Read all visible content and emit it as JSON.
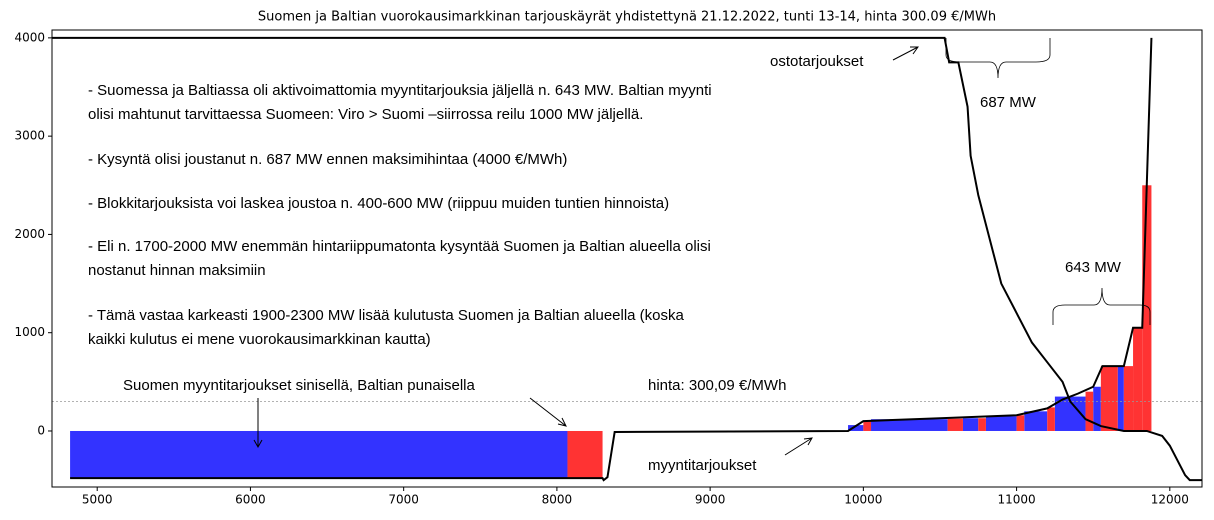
{
  "chart_data": {
    "type": "line",
    "title": "Suomen ja Baltian vuorokausimarkkinan tarjouskäyrät yhdistettynä 21.12.2022, tunti 13-14, hinta 300.09 €/MWh",
    "xlim": [
      4705,
      12210
    ],
    "ylim": [
      -570,
      4080
    ],
    "xticks": [
      5000,
      6000,
      7000,
      8000,
      9000,
      10000,
      11000,
      12000
    ],
    "yticks": [
      0,
      1000,
      2000,
      3000,
      4000
    ],
    "price": 300.09,
    "price_label": "hinta: 300,09 €/MWh",
    "bars_label": "Suomen myyntitarjoukset sinisellä, Baltian punaisella",
    "brace_labels": [
      "687 MW",
      "643 MW"
    ],
    "notes": [
      "- Suomessa ja Baltiassa oli aktivoimattomia myyntitarjouksia jäljellä n. 643 MW. Baltian myynti",
      "olisi mahtunut tarvittaessa Suomeen: Viro > Suomi –siirrossa reilu 1000 MW jäljellä.",
      "- Kysyntä olisi joustanut n. 687 MW ennen maksimihintaa (4000 €/MWh)",
      "- Blokkitarjouksista voi laskea joustoa n. 400-600 MW (riippuu muiden tuntien hinnoista)",
      "- Eli n. 1700-2000 MW enemmän hintariippumatonta kysyntää Suomen ja Baltian alueella olisi",
      "nostanut hinnan maksimiin",
      "- Tämä vastaa karkeasti 1900-2300 MW lisää kulutusta Suomen ja Baltian alueella (koska",
      "kaikki kulutus ei mene vuorokausimarkkinan kautta)"
    ],
    "bars": [
      {
        "color": "#3333ff",
        "x0": [
          4823,
          9900,
          10050,
          10650,
          10800,
          11050,
          11250,
          11500,
          11660
        ],
        "x1": [
          8069,
          10000,
          10550,
          10750,
          11000,
          11200,
          11450,
          11550,
          11700
        ],
        "values": [
          -480,
          60,
          120,
          130,
          150,
          200,
          350,
          450,
          660
        ]
      },
      {
        "color": "#ff3333",
        "x0": [
          8069,
          10000,
          10550,
          10750,
          11000,
          11200,
          11450,
          11550,
          11700,
          11760,
          11820
        ],
        "x1": [
          8298,
          10050,
          10650,
          10800,
          11050,
          11250,
          11500,
          11660,
          11760,
          11820,
          11880
        ],
        "values": [
          -480,
          100,
          125,
          130,
          160,
          240,
          400,
          660,
          660,
          1050,
          2500
        ]
      }
    ],
    "series": [
      {
        "name": "ostotarjoukset",
        "color": "#000000",
        "x": [
          4705,
          10530,
          10560,
          10620,
          10680,
          10700,
          10750,
          10800,
          10850,
          10900,
          11000,
          11100,
          11200,
          11300,
          11350,
          11450,
          11550,
          11700,
          11850,
          11950,
          12000,
          12100,
          12130,
          12210
        ],
        "values": [
          4000,
          4000,
          3750,
          3750,
          3300,
          2800,
          2400,
          2100,
          1800,
          1500,
          1200,
          900,
          700,
          500,
          300,
          120,
          50,
          0,
          0,
          -50,
          -150,
          -450,
          -500,
          -500
        ]
      },
      {
        "name": "myyntitarjoukset",
        "color": "#000000",
        "x": [
          4823,
          8298,
          8305,
          8330,
          8377,
          9900,
          10000,
          10500,
          11000,
          11200,
          11300,
          11400,
          11500,
          11560,
          11700,
          11760,
          11820,
          11880
        ],
        "values": [
          -480,
          -480,
          -500,
          -470,
          -10,
          0,
          100,
          130,
          160,
          230,
          320,
          380,
          450,
          660,
          660,
          1050,
          1050,
          4000
        ]
      }
    ]
  }
}
